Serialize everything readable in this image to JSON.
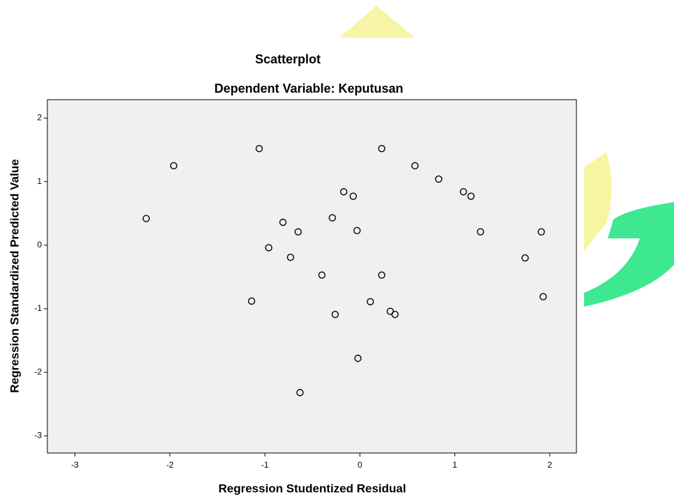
{
  "chart_data": {
    "type": "scatter",
    "title": "Scatterplot",
    "subtitle": "Dependent Variable: Keputusan",
    "x_label": "Regression Studentized Residual",
    "y_label": "Regression Standardized Predicted Value",
    "xlim": [
      -3.29,
      2.28
    ],
    "ylim": [
      -3.27,
      2.29
    ],
    "xticks": [
      -3,
      -2,
      -1,
      0,
      1,
      2
    ],
    "yticks": [
      -3,
      -2,
      -1,
      0,
      1,
      2
    ],
    "color": "#000000",
    "x": [
      -2.25,
      -1.96,
      -1.06,
      -1.14,
      -0.96,
      -0.81,
      -0.73,
      -0.65,
      -0.63,
      -0.4,
      -0.29,
      -0.26,
      -0.17,
      -0.07,
      -0.03,
      -0.02,
      0.11,
      0.23,
      0.23,
      0.32,
      0.37,
      0.58,
      0.83,
      1.09,
      1.17,
      1.27,
      1.74,
      1.91,
      1.93
    ],
    "values": [
      0.42,
      1.25,
      1.52,
      -0.88,
      -0.04,
      0.36,
      -0.19,
      0.21,
      -2.32,
      -0.47,
      0.43,
      -1.09,
      0.84,
      0.77,
      0.23,
      -1.78,
      -0.89,
      1.52,
      -0.47,
      -1.04,
      -1.09,
      1.25,
      1.04,
      0.84,
      0.77,
      0.21,
      -0.2,
      0.21,
      -0.81
    ]
  }
}
